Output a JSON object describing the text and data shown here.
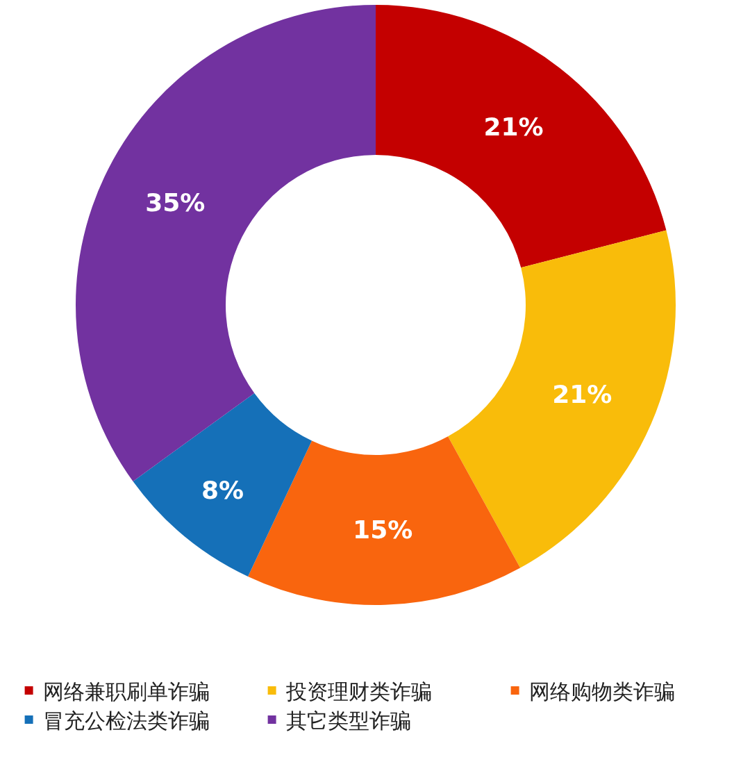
{
  "chart_data": {
    "type": "donut",
    "categories": [
      "网络兼职刷单诈骗",
      "投资理财类诈骗",
      "网络购物类诈骗",
      "冒充公检法类诈骗",
      "其它类型诈骗"
    ],
    "values": [
      21,
      21,
      15,
      8,
      35
    ],
    "colors": [
      "#c40000",
      "#f9bc0a",
      "#f9650e",
      "#1570b8",
      "#7232a0"
    ],
    "value_labels": [
      "21%",
      "21%",
      "15%",
      "8%",
      "35%"
    ],
    "legend": "bottom"
  }
}
